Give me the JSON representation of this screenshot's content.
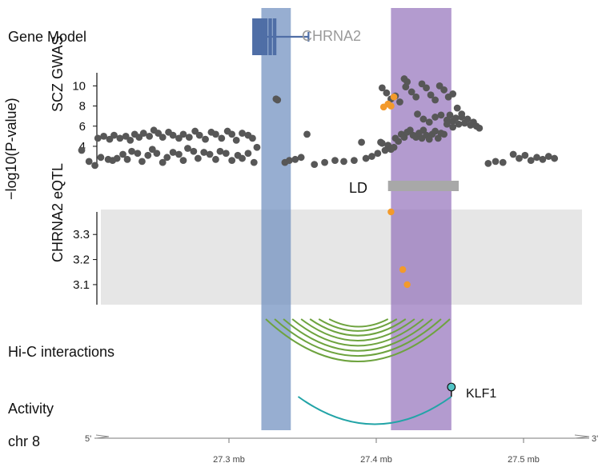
{
  "labels": {
    "gene_model": "Gene Model",
    "gene_name": "CHRNA2",
    "gwas_axis": "SCZ GWAS",
    "shared_axis": "−log10(P-value)",
    "ld": "LD",
    "eqtl_axis": "CHRNA2 eQTL",
    "hic": "Hi-C interactions",
    "activity": "Activity",
    "tf": "KLF1",
    "chromosome": "chr 8",
    "strand_5": "5'",
    "strand_3": "3'"
  },
  "chart_data": {
    "type": "scatter",
    "x_unit": "mb",
    "xlim": [
      27.19,
      27.55
    ],
    "x_ticks": [
      {
        "value": 27.3,
        "label": "27.3 mb"
      },
      {
        "value": 27.4,
        "label": "27.4 mb"
      },
      {
        "value": 27.5,
        "label": "27.5 mb"
      }
    ],
    "highlight_regions": [
      {
        "name": "gene-region",
        "start": 27.322,
        "end": 27.342,
        "color": "#6f8fbf"
      },
      {
        "name": "enhancer-region",
        "start": 27.41,
        "end": 27.451,
        "color": "#8f6bb8"
      }
    ],
    "gene_model": {
      "name": "CHRNA2",
      "start": 27.316,
      "end": 27.354,
      "exons": [
        27.317,
        27.319,
        27.321,
        27.323,
        27.325,
        27.328,
        27.331
      ],
      "color": "#4f6ea6"
    },
    "ld_block": {
      "start": 27.408,
      "end": 27.456,
      "color": "#a8a8a8"
    },
    "gwas": {
      "ylim": [
        2.25,
        11.3
      ],
      "yticks": [
        4,
        6,
        8,
        10
      ],
      "points": [
        [
          27.2,
          3.6
        ],
        [
          27.205,
          2.5
        ],
        [
          27.209,
          2.1
        ],
        [
          27.213,
          2.9
        ],
        [
          27.218,
          2.7
        ],
        [
          27.221,
          2.6
        ],
        [
          27.224,
          2.8
        ],
        [
          27.228,
          3.2
        ],
        [
          27.231,
          2.7
        ],
        [
          27.234,
          3.5
        ],
        [
          27.238,
          3.3
        ],
        [
          27.241,
          2.5
        ],
        [
          27.245,
          3.1
        ],
        [
          27.248,
          3.7
        ],
        [
          27.251,
          3.3
        ],
        [
          27.255,
          2.4
        ],
        [
          27.258,
          2.9
        ],
        [
          27.262,
          3.4
        ],
        [
          27.266,
          3.2
        ],
        [
          27.269,
          2.6
        ],
        [
          27.272,
          3.8
        ],
        [
          27.276,
          3.5
        ],
        [
          27.279,
          2.8
        ],
        [
          27.283,
          3.4
        ],
        [
          27.287,
          3.2
        ],
        [
          27.291,
          2.7
        ],
        [
          27.294,
          3.5
        ],
        [
          27.298,
          3.3
        ],
        [
          27.302,
          2.6
        ],
        [
          27.306,
          3.1
        ],
        [
          27.309,
          2.8
        ],
        [
          27.313,
          3.3
        ],
        [
          27.317,
          2.4
        ],
        [
          27.319,
          3.9
        ],
        [
          27.211,
          4.8
        ],
        [
          27.215,
          5.0
        ],
        [
          27.219,
          4.7
        ],
        [
          27.222,
          5.1
        ],
        [
          27.226,
          4.8
        ],
        [
          27.23,
          5.0
        ],
        [
          27.233,
          4.6
        ],
        [
          27.236,
          5.2
        ],
        [
          27.239,
          4.9
        ],
        [
          27.242,
          5.3
        ],
        [
          27.246,
          5.0
        ],
        [
          27.249,
          5.6
        ],
        [
          27.252,
          5.3
        ],
        [
          27.255,
          4.9
        ],
        [
          27.259,
          5.4
        ],
        [
          27.262,
          5.1
        ],
        [
          27.266,
          4.8
        ],
        [
          27.269,
          5.2
        ],
        [
          27.273,
          4.9
        ],
        [
          27.277,
          5.5
        ],
        [
          27.28,
          5.1
        ],
        [
          27.284,
          4.7
        ],
        [
          27.288,
          5.4
        ],
        [
          27.291,
          5.2
        ],
        [
          27.295,
          4.8
        ],
        [
          27.299,
          5.5
        ],
        [
          27.302,
          5.2
        ],
        [
          27.305,
          4.6
        ],
        [
          27.309,
          5.3
        ],
        [
          27.313,
          5.1
        ],
        [
          27.316,
          4.8
        ],
        [
          27.332,
          8.7
        ],
        [
          27.333,
          8.6
        ],
        [
          27.338,
          2.4
        ],
        [
          27.341,
          2.6
        ],
        [
          27.345,
          2.7
        ],
        [
          27.349,
          2.9
        ],
        [
          27.353,
          5.2
        ],
        [
          27.358,
          2.2
        ],
        [
          27.365,
          2.4
        ],
        [
          27.372,
          2.6
        ],
        [
          27.378,
          2.5
        ],
        [
          27.385,
          2.6
        ],
        [
          27.39,
          4.4
        ],
        [
          27.393,
          2.8
        ],
        [
          27.397,
          3.0
        ],
        [
          27.401,
          3.3
        ],
        [
          27.403,
          4.4
        ],
        [
          27.404,
          4.3
        ],
        [
          27.406,
          3.6
        ],
        [
          27.408,
          4.1
        ],
        [
          27.41,
          3.7
        ],
        [
          27.412,
          3.9
        ],
        [
          27.413,
          4.8
        ],
        [
          27.415,
          4.5
        ],
        [
          27.417,
          5.2
        ],
        [
          27.419,
          4.9
        ],
        [
          27.421,
          5.4
        ],
        [
          27.423,
          5.6
        ],
        [
          27.425,
          5.1
        ],
        [
          27.427,
          4.9
        ],
        [
          27.429,
          5.3
        ],
        [
          27.431,
          4.8
        ],
        [
          27.432,
          5.6
        ],
        [
          27.434,
          5.1
        ],
        [
          27.436,
          4.7
        ],
        [
          27.438,
          5.2
        ],
        [
          27.44,
          5.5
        ],
        [
          27.442,
          4.8
        ],
        [
          27.444,
          5.3
        ],
        [
          27.446,
          5.2
        ],
        [
          27.448,
          6.6
        ],
        [
          27.45,
          7.1
        ],
        [
          27.452,
          6.5
        ],
        [
          27.454,
          6.8
        ],
        [
          27.456,
          6.2
        ],
        [
          27.458,
          6.9
        ],
        [
          27.46,
          6.3
        ],
        [
          27.462,
          6.7
        ],
        [
          27.464,
          6.1
        ],
        [
          27.466,
          6.4
        ],
        [
          27.468,
          6.0
        ],
        [
          27.47,
          5.8
        ],
        [
          27.404,
          9.8
        ],
        [
          27.407,
          9.3
        ],
        [
          27.41,
          8.7
        ],
        [
          27.413,
          9.0
        ],
        [
          27.416,
          8.4
        ],
        [
          27.42,
          9.9
        ],
        [
          27.424,
          9.4
        ],
        [
          27.427,
          8.9
        ],
        [
          27.431,
          10.2
        ],
        [
          27.434,
          9.8
        ],
        [
          27.437,
          9.1
        ],
        [
          27.44,
          8.6
        ],
        [
          27.443,
          10.0
        ],
        [
          27.446,
          9.6
        ],
        [
          27.449,
          8.9
        ],
        [
          27.452,
          9.2
        ],
        [
          27.455,
          7.8
        ],
        [
          27.458,
          7.2
        ],
        [
          27.419,
          10.7
        ],
        [
          27.421,
          10.4
        ],
        [
          27.428,
          7.2
        ],
        [
          27.432,
          6.7
        ],
        [
          27.436,
          6.4
        ],
        [
          27.44,
          6.9
        ],
        [
          27.444,
          7.1
        ],
        [
          27.448,
          6.2
        ],
        [
          27.452,
          5.9
        ],
        [
          27.476,
          2.3
        ],
        [
          27.481,
          2.5
        ],
        [
          27.486,
          2.4
        ],
        [
          27.493,
          3.2
        ],
        [
          27.497,
          2.8
        ],
        [
          27.501,
          3.1
        ],
        [
          27.505,
          2.6
        ],
        [
          27.509,
          2.9
        ],
        [
          27.513,
          2.7
        ],
        [
          27.517,
          3.0
        ],
        [
          27.521,
          2.8
        ]
      ],
      "highlight_points": [
        [
          27.405,
          7.9
        ],
        [
          27.408,
          8.2
        ],
        [
          27.412,
          8.9
        ],
        [
          27.41,
          8.0
        ]
      ]
    },
    "eqtl": {
      "ylim": [
        3.02,
        3.39
      ],
      "yticks": [
        3.1,
        3.2,
        3.3
      ],
      "points": [
        [
          27.41,
          3.39
        ],
        [
          27.418,
          3.16
        ],
        [
          27.421,
          3.1
        ]
      ]
    },
    "hic_interactions": [
      {
        "start": 27.325,
        "end": 27.45,
        "depth": 1.0
      },
      {
        "start": 27.331,
        "end": 27.444,
        "depth": 0.87
      },
      {
        "start": 27.337,
        "end": 27.438,
        "depth": 0.75
      },
      {
        "start": 27.343,
        "end": 27.432,
        "depth": 0.63
      },
      {
        "start": 27.349,
        "end": 27.426,
        "depth": 0.51
      },
      {
        "start": 27.355,
        "end": 27.42,
        "depth": 0.39
      },
      {
        "start": 27.361,
        "end": 27.414,
        "depth": 0.28
      },
      {
        "start": 27.368,
        "end": 27.408,
        "depth": 0.18
      }
    ],
    "activity": {
      "start": 27.347,
      "end": 27.451,
      "tf_position": 27.451,
      "color": "#22a4a7"
    }
  },
  "colors": {
    "gene_region": "#6f8fbf",
    "enhancer_region": "#8f6bb8",
    "gray_panel": "#e6e6e6",
    "gwas_points": "#575757",
    "highlight_points": "#f39a2b",
    "hic": "#6ea33f",
    "activity": "#22a4a7",
    "tf_fill": "#52c4c6",
    "axis": "#111111"
  }
}
